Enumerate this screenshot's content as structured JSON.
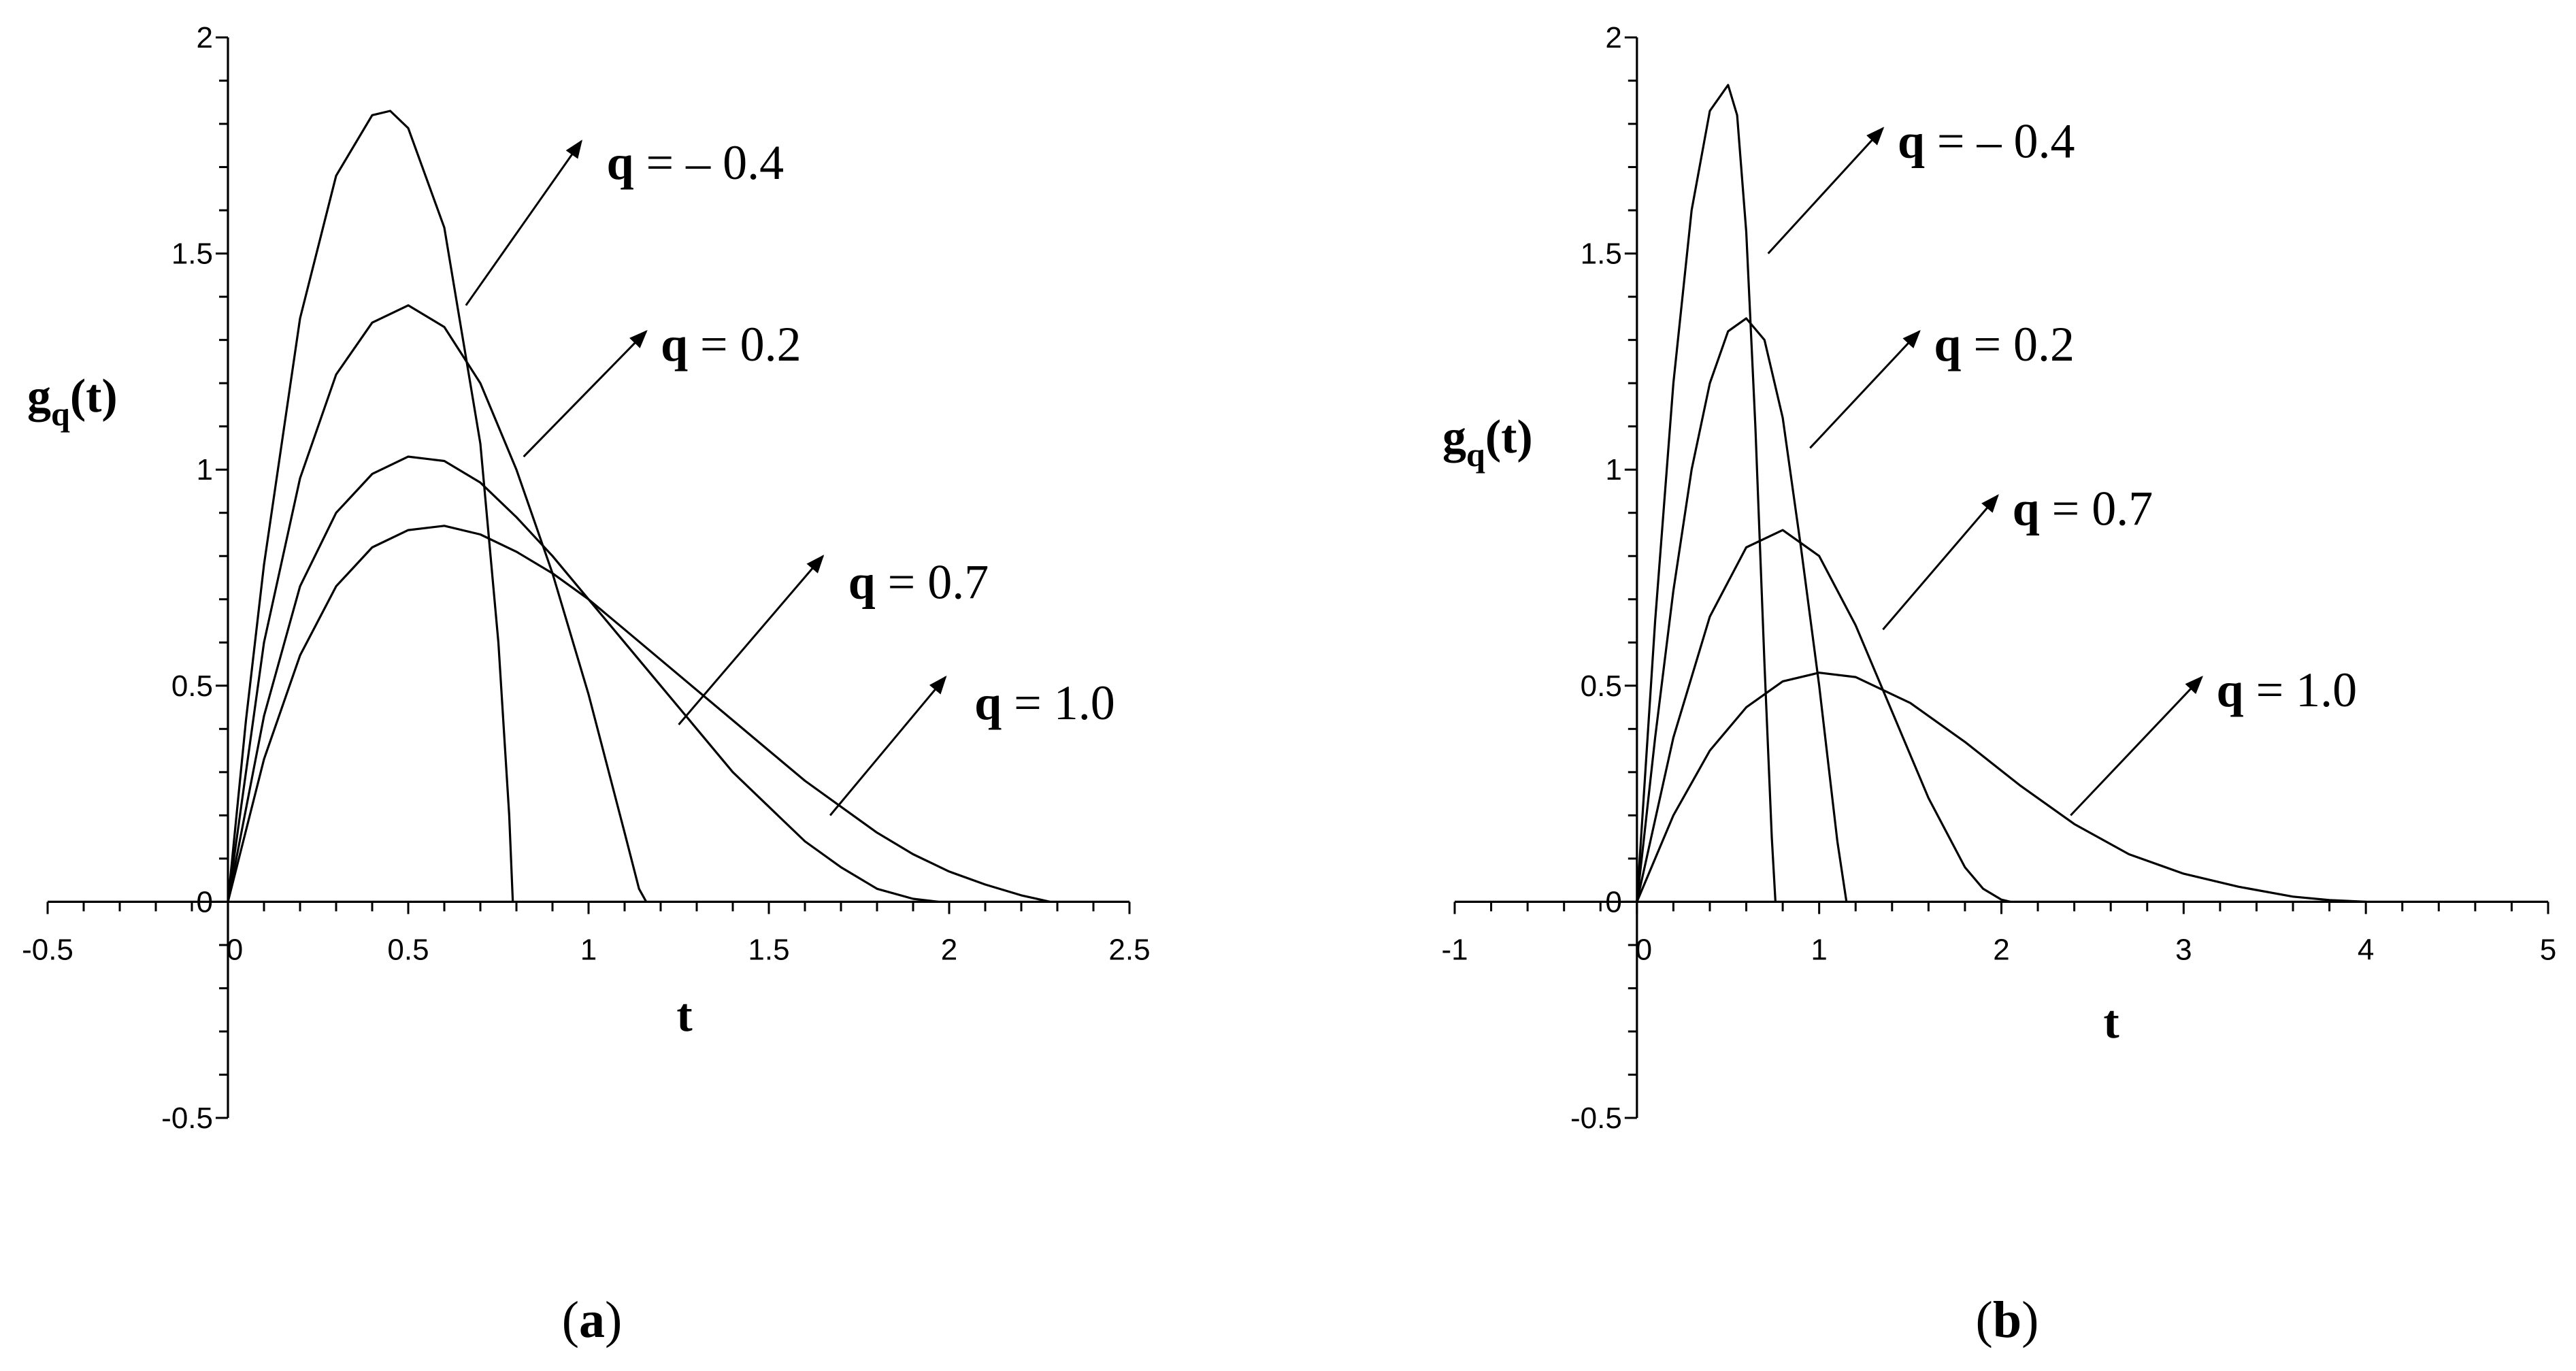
{
  "chart_data": [
    {
      "type": "line",
      "panel_label": {
        "open": "(",
        "letter": "a",
        "close": ")"
      },
      "xlabel": "t",
      "ylabel": {
        "main": "g",
        "sub": "q",
        "rest": "(t)"
      },
      "xlim": [
        -0.5,
        2.5
      ],
      "ylim": [
        -0.5,
        2
      ],
      "x_ticks": [
        "-0.5",
        "0",
        "0.5",
        "1",
        "1.5",
        "2",
        "2.5"
      ],
      "y_ticks": [
        "-0.5",
        "0",
        "0.5",
        "1",
        "1.5",
        "2"
      ],
      "series": [
        {
          "name": "q = – 0.4",
          "q": -0.4,
          "x": [
            0,
            0.05,
            0.1,
            0.2,
            0.3,
            0.4,
            0.45,
            0.5,
            0.6,
            0.7,
            0.75,
            0.78,
            0.79
          ],
          "y": [
            0,
            0.42,
            0.78,
            1.35,
            1.68,
            1.82,
            1.83,
            1.79,
            1.56,
            1.06,
            0.6,
            0.2,
            0
          ]
        },
        {
          "name": "q = 0.2",
          "q": 0.2,
          "x": [
            0,
            0.1,
            0.2,
            0.3,
            0.4,
            0.5,
            0.6,
            0.7,
            0.8,
            0.9,
            1.0,
            1.1,
            1.14,
            1.16
          ],
          "y": [
            0,
            0.6,
            0.98,
            1.22,
            1.34,
            1.38,
            1.33,
            1.2,
            1.0,
            0.76,
            0.48,
            0.16,
            0.03,
            0
          ]
        },
        {
          "name": "q = 0.7",
          "q": 0.7,
          "x": [
            0,
            0.1,
            0.2,
            0.3,
            0.4,
            0.5,
            0.6,
            0.7,
            0.8,
            0.9,
            1.0,
            1.1,
            1.2,
            1.3,
            1.4,
            1.5,
            1.6,
            1.7,
            1.8,
            1.9,
            1.97
          ],
          "y": [
            0,
            0.43,
            0.73,
            0.9,
            0.99,
            1.03,
            1.02,
            0.97,
            0.89,
            0.8,
            0.7,
            0.6,
            0.5,
            0.4,
            0.3,
            0.22,
            0.14,
            0.08,
            0.03,
            0.007,
            0
          ]
        },
        {
          "name": "q = 1.0",
          "q": 1.0,
          "x": [
            0,
            0.1,
            0.2,
            0.3,
            0.4,
            0.5,
            0.6,
            0.7,
            0.8,
            0.9,
            1.0,
            1.1,
            1.2,
            1.3,
            1.4,
            1.5,
            1.6,
            1.7,
            1.8,
            1.9,
            2.0,
            2.1,
            2.2,
            2.28
          ],
          "y": [
            0,
            0.33,
            0.57,
            0.73,
            0.82,
            0.86,
            0.87,
            0.85,
            0.81,
            0.76,
            0.7,
            0.63,
            0.56,
            0.49,
            0.42,
            0.35,
            0.28,
            0.22,
            0.16,
            0.11,
            0.07,
            0.04,
            0.015,
            0
          ]
        }
      ],
      "annotations": [
        {
          "q_text": "q",
          "eq_text": "= – 0.4",
          "text_at": [
            1.05,
            1.71
          ],
          "arrow_from": [
            0.66,
            1.38
          ],
          "arrow_to": [
            0.98,
            1.76
          ]
        },
        {
          "q_text": "q",
          "eq_text": "= 0.2",
          "text_at": [
            1.2,
            1.29
          ],
          "arrow_from": [
            0.82,
            1.03
          ],
          "arrow_to": [
            1.16,
            1.32
          ]
        },
        {
          "q_text": "q",
          "eq_text": "= 0.7",
          "text_at": [
            1.72,
            0.74
          ],
          "arrow_from": [
            1.25,
            0.41
          ],
          "arrow_to": [
            1.65,
            0.8
          ]
        },
        {
          "q_text": "q",
          "eq_text": "= 1.0",
          "text_at": [
            2.07,
            0.46
          ],
          "arrow_from": [
            1.67,
            0.2
          ],
          "arrow_to": [
            1.99,
            0.52
          ]
        }
      ]
    },
    {
      "type": "line",
      "panel_label": {
        "open": "(",
        "letter": "b",
        "close": ")"
      },
      "xlabel": "t",
      "ylabel": {
        "main": "g",
        "sub": "q",
        "rest": "(t)"
      },
      "xlim": [
        -1,
        5
      ],
      "ylim": [
        -0.5,
        2
      ],
      "x_ticks": [
        "-1",
        "0",
        "1",
        "2",
        "3",
        "4",
        "5"
      ],
      "y_ticks": [
        "-0.5",
        "0",
        "0.5",
        "1",
        "1.5",
        "2"
      ],
      "series": [
        {
          "name": "q = – 0.4",
          "q": -0.4,
          "x": [
            0,
            0.1,
            0.2,
            0.3,
            0.4,
            0.5,
            0.55,
            0.6,
            0.65,
            0.7,
            0.74,
            0.76
          ],
          "y": [
            0,
            0.65,
            1.2,
            1.6,
            1.83,
            1.89,
            1.82,
            1.55,
            1.1,
            0.55,
            0.15,
            0
          ]
        },
        {
          "name": "q = 0.2",
          "q": 0.2,
          "x": [
            0,
            0.1,
            0.2,
            0.3,
            0.4,
            0.5,
            0.6,
            0.7,
            0.8,
            0.9,
            1.0,
            1.1,
            1.15
          ],
          "y": [
            0,
            0.38,
            0.72,
            1.0,
            1.2,
            1.32,
            1.35,
            1.3,
            1.12,
            0.82,
            0.5,
            0.14,
            0
          ]
        },
        {
          "name": "q = 0.7",
          "q": 0.7,
          "x": [
            0,
            0.2,
            0.4,
            0.6,
            0.8,
            1.0,
            1.2,
            1.4,
            1.6,
            1.8,
            1.9,
            2.0,
            2.05
          ],
          "y": [
            0,
            0.38,
            0.66,
            0.82,
            0.86,
            0.8,
            0.64,
            0.44,
            0.24,
            0.08,
            0.03,
            0.005,
            0
          ]
        },
        {
          "name": "q = 1.0",
          "q": 1.0,
          "x": [
            0,
            0.2,
            0.4,
            0.6,
            0.8,
            1.0,
            1.2,
            1.5,
            1.8,
            2.1,
            2.4,
            2.7,
            3.0,
            3.3,
            3.6,
            3.8,
            4.0
          ],
          "y": [
            0,
            0.2,
            0.35,
            0.45,
            0.51,
            0.53,
            0.52,
            0.46,
            0.37,
            0.27,
            0.18,
            0.11,
            0.065,
            0.035,
            0.012,
            0.004,
            0
          ]
        }
      ],
      "annotations": [
        {
          "q_text": "q",
          "eq_text": "= – 0.4",
          "text_at": [
            1.43,
            1.76
          ],
          "arrow_from": [
            0.72,
            1.5
          ],
          "arrow_to": [
            1.35,
            1.79
          ]
        },
        {
          "q_text": "q",
          "eq_text": "= 0.2",
          "text_at": [
            1.63,
            1.29
          ],
          "arrow_from": [
            0.95,
            1.05
          ],
          "arrow_to": [
            1.55,
            1.32
          ]
        },
        {
          "q_text": "q",
          "eq_text": "= 0.7",
          "text_at": [
            2.06,
            0.91
          ],
          "arrow_from": [
            1.35,
            0.63
          ],
          "arrow_to": [
            1.98,
            0.94
          ]
        },
        {
          "q_text": "q",
          "eq_text": "= 1.0",
          "text_at": [
            3.18,
            0.49
          ],
          "arrow_from": [
            2.38,
            0.2
          ],
          "arrow_to": [
            3.1,
            0.52
          ]
        }
      ]
    }
  ]
}
